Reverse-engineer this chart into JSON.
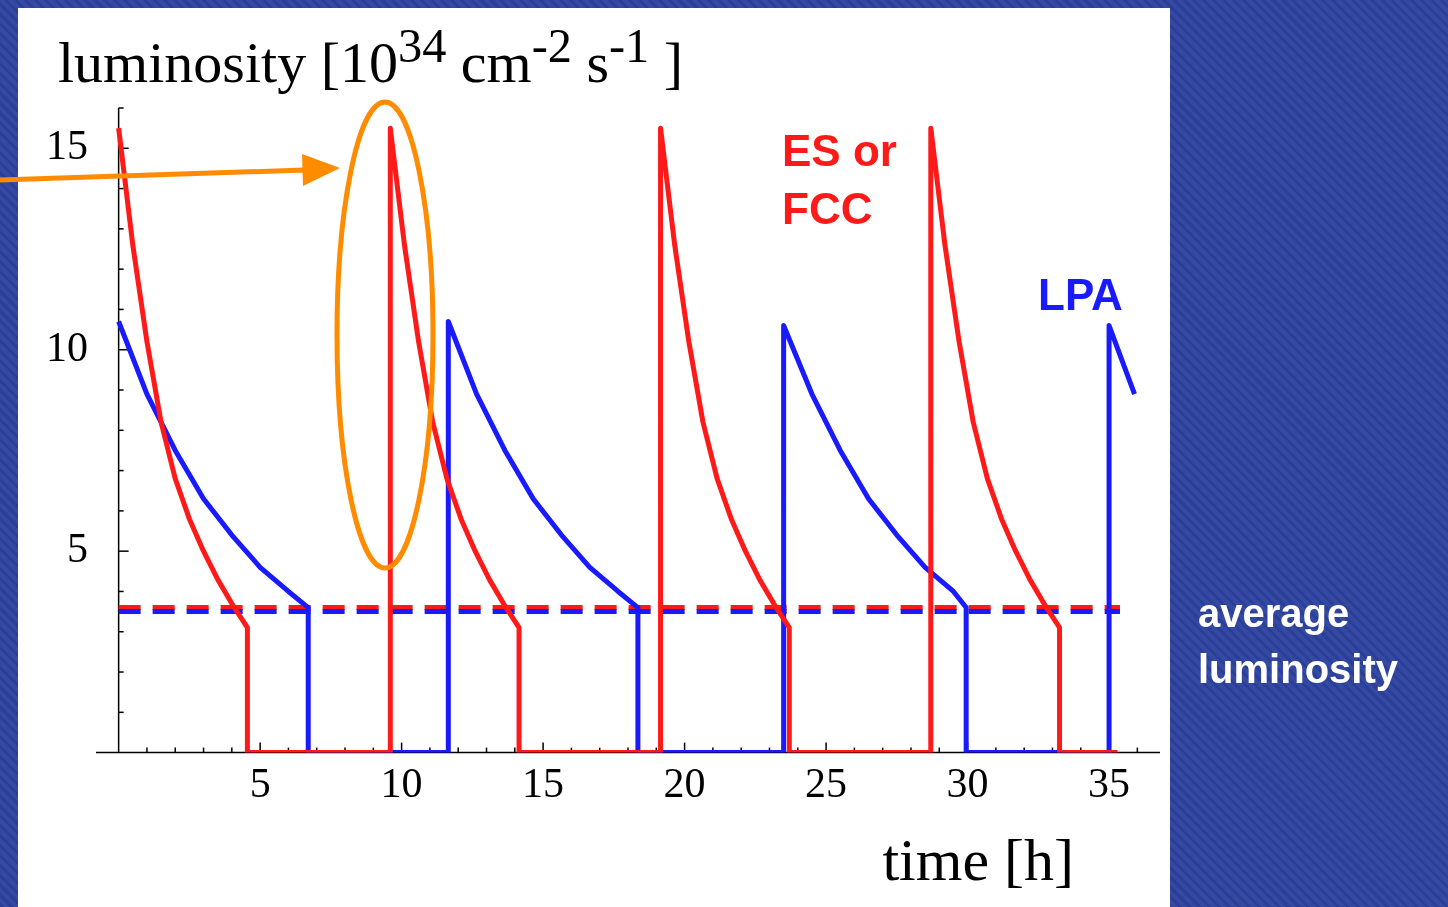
{
  "chart_data": {
    "type": "line",
    "xlabel": "time [h]",
    "ylabel": "luminosity [10$^{34}$ cm$^{-2}$ s$^{-1}$ ]",
    "xlim": [
      -0.8,
      36.8
    ],
    "ylim": [
      0,
      16
    ],
    "xticks": [
      {
        "value": 1,
        "label": null
      },
      {
        "value": 2,
        "label": null
      },
      {
        "value": 3,
        "label": null
      },
      {
        "value": 4,
        "label": null
      },
      5,
      {
        "value": 6,
        "label": null
      },
      {
        "value": 7,
        "label": null
      },
      {
        "value": 8,
        "label": null
      },
      {
        "value": 9,
        "label": null
      },
      10,
      {
        "value": 11,
        "label": null
      },
      {
        "value": 12,
        "label": null
      },
      {
        "value": 13,
        "label": null
      },
      {
        "value": 14,
        "label": null
      },
      15,
      {
        "value": 16,
        "label": null
      },
      {
        "value": 17,
        "label": null
      },
      {
        "value": 18,
        "label": null
      },
      {
        "value": 19,
        "label": null
      },
      20,
      {
        "value": 21,
        "label": null
      },
      {
        "value": 22,
        "label": null
      },
      {
        "value": 23,
        "label": null
      },
      {
        "value": 24,
        "label": null
      },
      25,
      {
        "value": 26,
        "label": null
      },
      {
        "value": 27,
        "label": null
      },
      {
        "value": 28,
        "label": null
      },
      {
        "value": 29,
        "label": null
      },
      30,
      {
        "value": 31,
        "label": null
      },
      {
        "value": 32,
        "label": null
      },
      {
        "value": 33,
        "label": null
      },
      {
        "value": 34,
        "label": null
      },
      35,
      {
        "value": 36,
        "label": null
      }
    ],
    "yticks": [
      {
        "value": 1,
        "label": null
      },
      {
        "value": 2,
        "label": null
      },
      {
        "value": 3,
        "label": null
      },
      {
        "value": 4,
        "label": null
      },
      5,
      {
        "value": 6,
        "label": null
      },
      {
        "value": 7,
        "label": null
      },
      {
        "value": 8,
        "label": null
      },
      {
        "value": 9,
        "label": null
      },
      10,
      {
        "value": 11,
        "label": null
      },
      {
        "value": 12,
        "label": null
      },
      {
        "value": 13,
        "label": null
      },
      {
        "value": 14,
        "label": null
      },
      15,
      {
        "value": 16,
        "label": null
      }
    ],
    "grid": false,
    "legend": false,
    "marker": "none",
    "line_style": "solid",
    "series": [
      {
        "name": "ES or FCC",
        "color": "#ff1a1a",
        "x": [
          0,
          0.5,
          1,
          1.5,
          2,
          2.5,
          3,
          3.5,
          4,
          4.55,
          4.55,
          9.6,
          9.6,
          10.1,
          10.6,
          11.1,
          11.6,
          12.1,
          12.6,
          13.1,
          13.6,
          14.15,
          14.15,
          19.15,
          19.15,
          19.65,
          20.15,
          20.65,
          21.15,
          21.65,
          22.15,
          22.65,
          23.15,
          23.7,
          23.7,
          28.7,
          28.7,
          29.2,
          29.7,
          30.2,
          30.7,
          31.2,
          31.7,
          32.2,
          32.7,
          33.25,
          33.25,
          35.3
        ],
        "values": [
          15.5,
          12.6,
          10.2,
          8.2,
          6.8,
          5.8,
          5.0,
          4.3,
          3.7,
          3.1,
          0,
          0,
          15.5,
          12.6,
          10.2,
          8.2,
          6.8,
          5.8,
          5.0,
          4.3,
          3.7,
          3.1,
          0,
          0,
          15.5,
          12.6,
          10.2,
          8.2,
          6.8,
          5.8,
          5.0,
          4.3,
          3.7,
          3.1,
          0,
          0,
          15.5,
          12.6,
          10.2,
          8.2,
          6.8,
          5.8,
          5.0,
          4.3,
          3.7,
          3.1,
          0,
          0
        ]
      },
      {
        "name": "LPA",
        "color": "#1a1aff",
        "x": [
          0,
          1,
          2,
          3,
          4,
          5,
          6,
          6.7,
          6.7,
          11.65,
          11.65,
          12.65,
          13.65,
          14.65,
          15.65,
          16.65,
          17.65,
          18.35,
          18.35,
          23.5,
          23.5,
          24.5,
          25.5,
          26.5,
          27.5,
          28.5,
          29.5,
          29.95,
          29.95,
          35.0,
          35.0,
          35.9
        ],
        "values": [
          10.7,
          8.9,
          7.5,
          6.3,
          5.4,
          4.6,
          4.0,
          3.6,
          0,
          0,
          10.7,
          8.9,
          7.5,
          6.3,
          5.4,
          4.6,
          4.0,
          3.6,
          0,
          0,
          10.6,
          8.9,
          7.5,
          6.3,
          5.4,
          4.6,
          4.0,
          3.6,
          0,
          0,
          10.6,
          8.9
        ]
      }
    ],
    "ref_lines": [
      {
        "axis": "y",
        "value": 3.6,
        "label": null,
        "color": "#ff1a1a",
        "line_style": "dashed"
      },
      {
        "axis": "y",
        "value": 3.5,
        "label": null,
        "color": "#1a1aff",
        "line_style": "dashed"
      }
    ],
    "annotations": [
      "average luminosity"
    ]
  }
}
